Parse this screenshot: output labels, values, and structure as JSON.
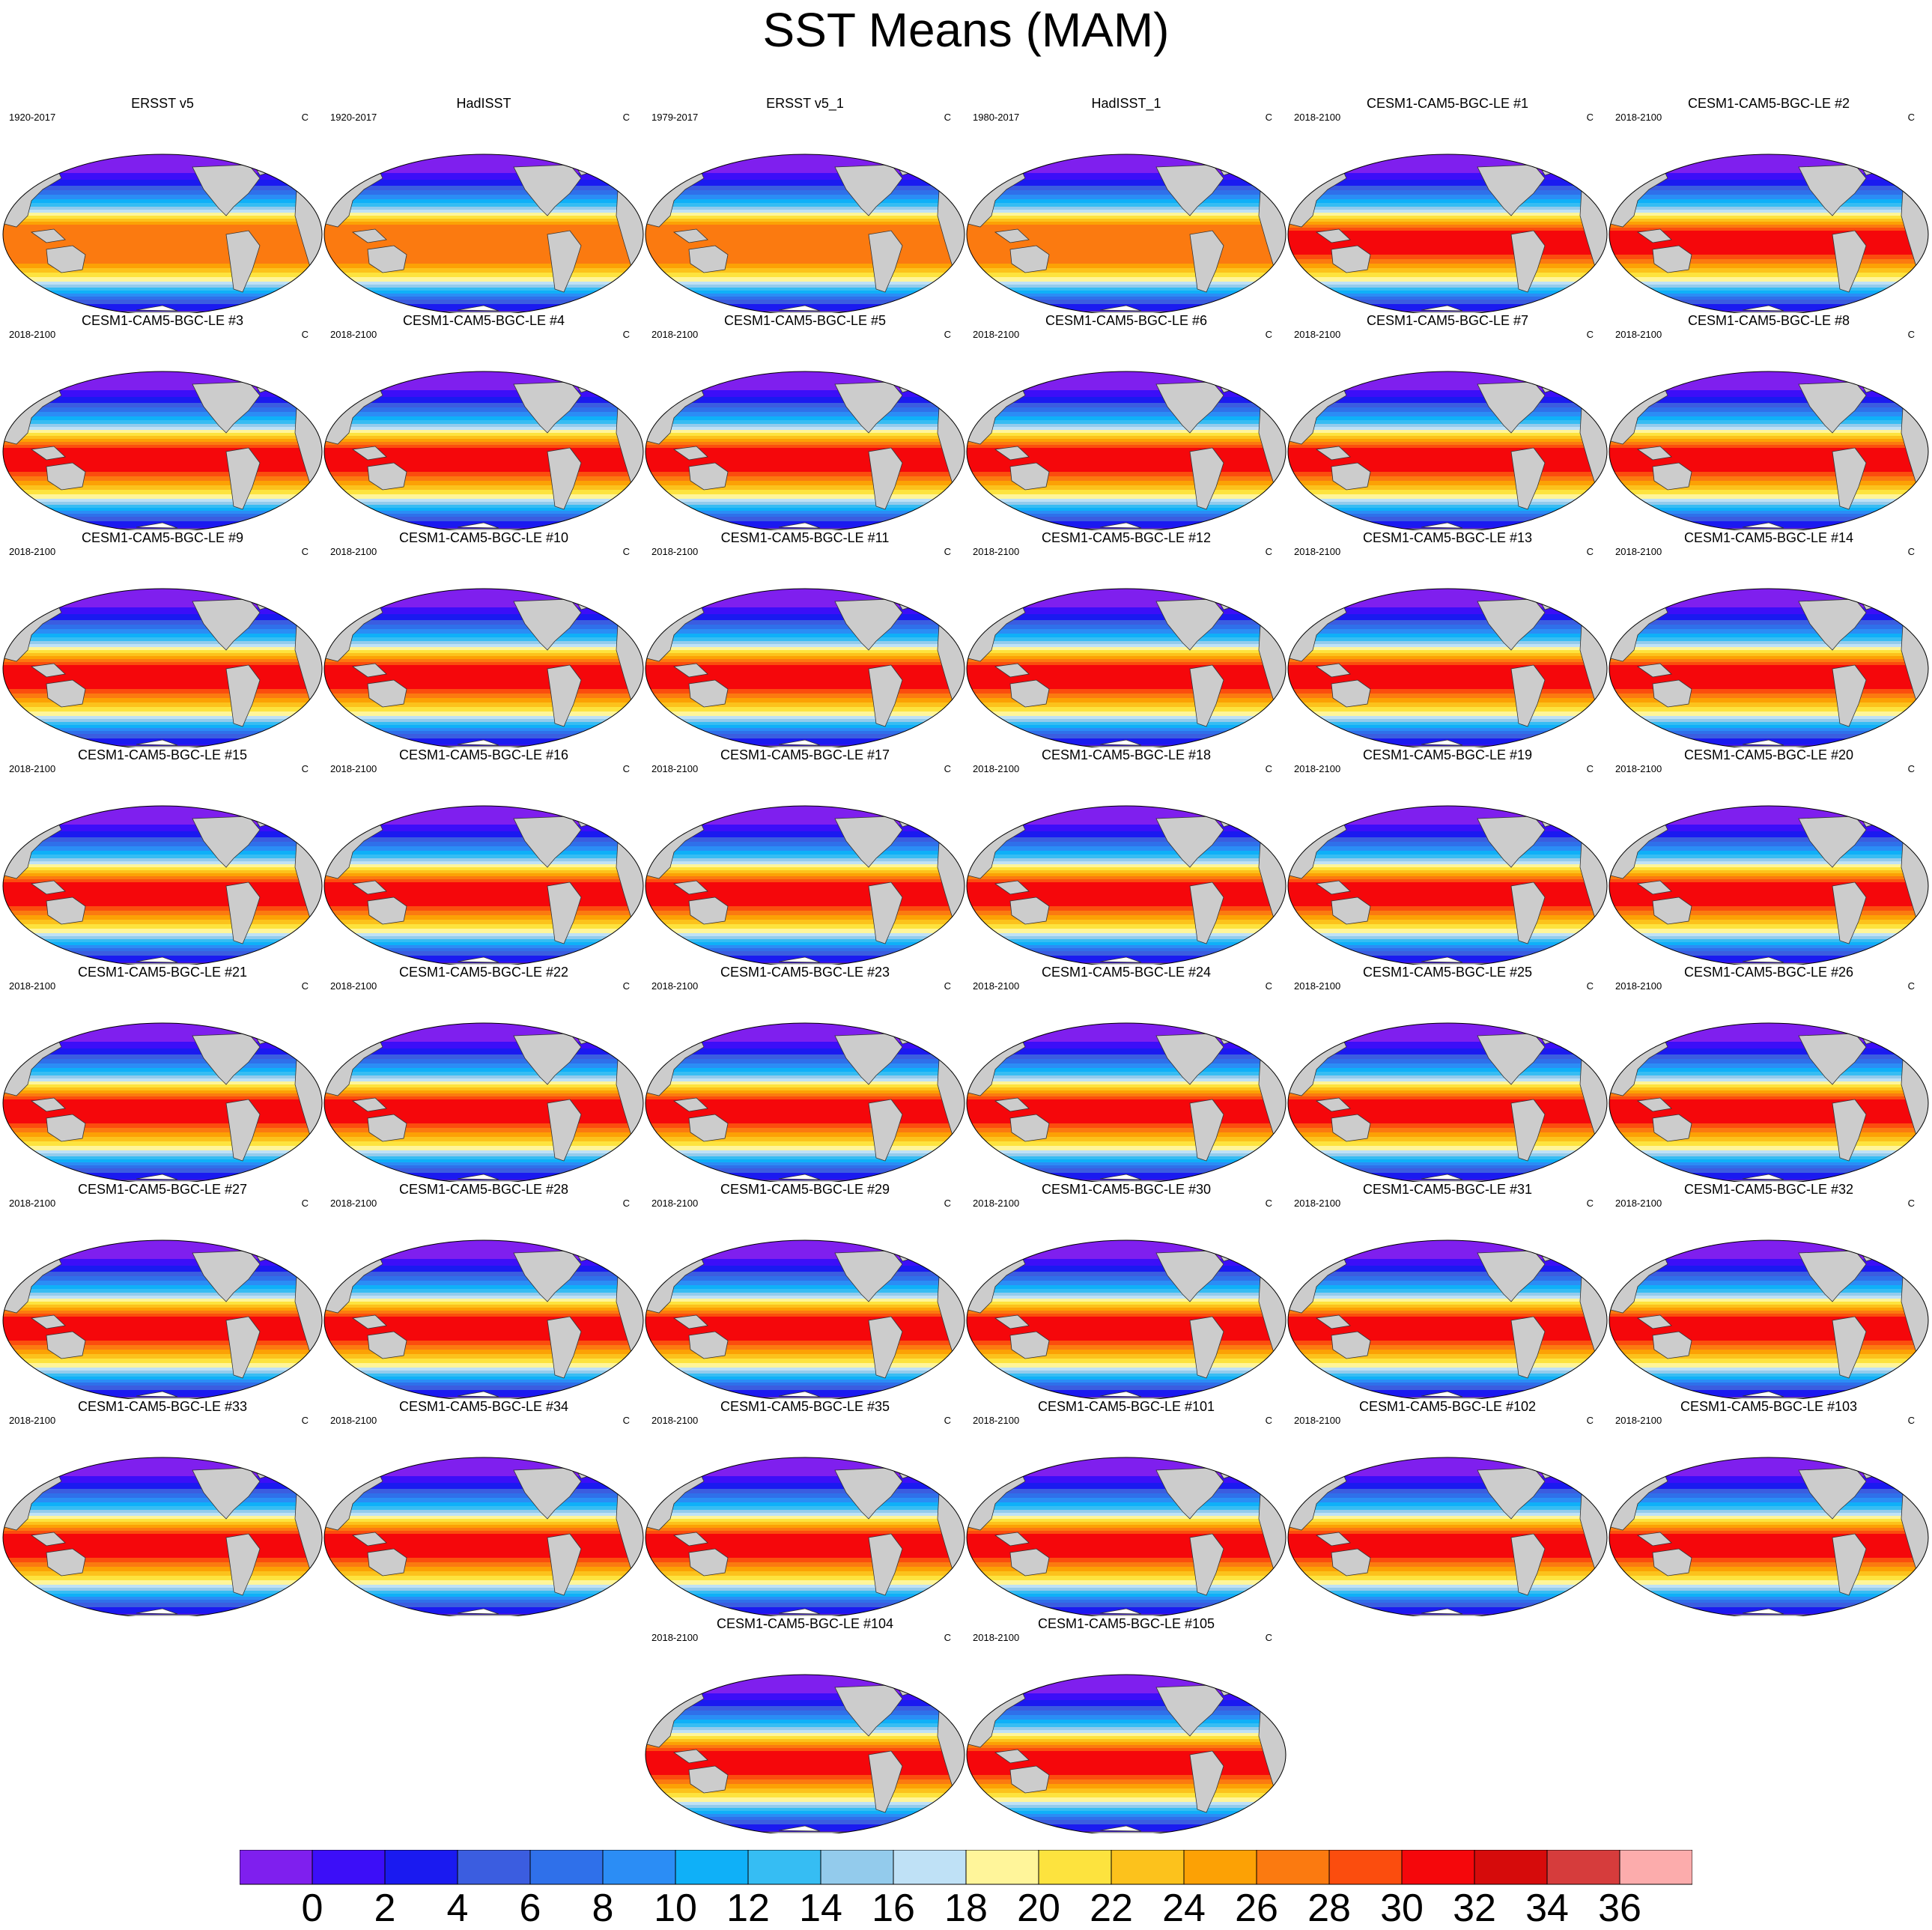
{
  "title": "SST Means (MAM)",
  "units": "C",
  "colors": {
    "land": "#cccccc",
    "ice": "#ffffff",
    "outline": "#333333"
  },
  "colorbar": {
    "colors": [
      "#7f1fee",
      "#3c0ef8",
      "#1a1af0",
      "#3b5de0",
      "#2f70ea",
      "#2b8df5",
      "#0fb0f8",
      "#36bdf3",
      "#93cbec",
      "#bfe1f6",
      "#fff59a",
      "#fde33e",
      "#fcc21c",
      "#fca105",
      "#fb7a10",
      "#fb4d0e",
      "#f5070b",
      "#d60b0b",
      "#d63c3c",
      "#fcacac"
    ],
    "labels": [
      "0",
      "2",
      "4",
      "6",
      "8",
      "10",
      "12",
      "14",
      "16",
      "18",
      "20",
      "22",
      "24",
      "26",
      "28",
      "30",
      "32",
      "34",
      "36"
    ]
  },
  "chart_data": {
    "type": "heatmap",
    "description_variable": "Sea surface temperature MAM climatology maps",
    "levels": [
      0,
      2,
      4,
      6,
      8,
      10,
      12,
      14,
      16,
      18,
      20,
      22,
      24,
      26,
      28,
      30,
      32,
      34,
      36
    ],
    "panels": [
      {
        "title": "ERSST v5",
        "period": "1920-2017",
        "units": "C"
      },
      {
        "title": "HadISST",
        "period": "1920-2017",
        "units": "C"
      },
      {
        "title": "ERSST v5_1",
        "period": "1979-2017",
        "units": "C"
      },
      {
        "title": "HadISST_1",
        "period": "1980-2017",
        "units": "C"
      },
      {
        "title": "CESM1-CAM5-BGC-LE #1",
        "period": "2018-2100",
        "units": "C"
      },
      {
        "title": "CESM1-CAM5-BGC-LE #2",
        "period": "2018-2100",
        "units": "C"
      },
      {
        "title": "CESM1-CAM5-BGC-LE #3",
        "period": "2018-2100",
        "units": "C"
      },
      {
        "title": "CESM1-CAM5-BGC-LE #4",
        "period": "2018-2100",
        "units": "C"
      },
      {
        "title": "CESM1-CAM5-BGC-LE #5",
        "period": "2018-2100",
        "units": "C"
      },
      {
        "title": "CESM1-CAM5-BGC-LE #6",
        "period": "2018-2100",
        "units": "C"
      },
      {
        "title": "CESM1-CAM5-BGC-LE #7",
        "period": "2018-2100",
        "units": "C"
      },
      {
        "title": "CESM1-CAM5-BGC-LE #8",
        "period": "2018-2100",
        "units": "C"
      },
      {
        "title": "CESM1-CAM5-BGC-LE #9",
        "period": "2018-2100",
        "units": "C"
      },
      {
        "title": "CESM1-CAM5-BGC-LE #10",
        "period": "2018-2100",
        "units": "C"
      },
      {
        "title": "CESM1-CAM5-BGC-LE #11",
        "period": "2018-2100",
        "units": "C"
      },
      {
        "title": "CESM1-CAM5-BGC-LE #12",
        "period": "2018-2100",
        "units": "C"
      },
      {
        "title": "CESM1-CAM5-BGC-LE #13",
        "period": "2018-2100",
        "units": "C"
      },
      {
        "title": "CESM1-CAM5-BGC-LE #14",
        "period": "2018-2100",
        "units": "C"
      },
      {
        "title": "CESM1-CAM5-BGC-LE #15",
        "period": "2018-2100",
        "units": "C"
      },
      {
        "title": "CESM1-CAM5-BGC-LE #16",
        "period": "2018-2100",
        "units": "C"
      },
      {
        "title": "CESM1-CAM5-BGC-LE #17",
        "period": "2018-2100",
        "units": "C"
      },
      {
        "title": "CESM1-CAM5-BGC-LE #18",
        "period": "2018-2100",
        "units": "C"
      },
      {
        "title": "CESM1-CAM5-BGC-LE #19",
        "period": "2018-2100",
        "units": "C"
      },
      {
        "title": "CESM1-CAM5-BGC-LE #20",
        "period": "2018-2100",
        "units": "C"
      },
      {
        "title": "CESM1-CAM5-BGC-LE #21",
        "period": "2018-2100",
        "units": "C"
      },
      {
        "title": "CESM1-CAM5-BGC-LE #22",
        "period": "2018-2100",
        "units": "C"
      },
      {
        "title": "CESM1-CAM5-BGC-LE #23",
        "period": "2018-2100",
        "units": "C"
      },
      {
        "title": "CESM1-CAM5-BGC-LE #24",
        "period": "2018-2100",
        "units": "C"
      },
      {
        "title": "CESM1-CAM5-BGC-LE #25",
        "period": "2018-2100",
        "units": "C"
      },
      {
        "title": "CESM1-CAM5-BGC-LE #26",
        "period": "2018-2100",
        "units": "C"
      },
      {
        "title": "CESM1-CAM5-BGC-LE #27",
        "period": "2018-2100",
        "units": "C"
      },
      {
        "title": "CESM1-CAM5-BGC-LE #28",
        "period": "2018-2100",
        "units": "C"
      },
      {
        "title": "CESM1-CAM5-BGC-LE #29",
        "period": "2018-2100",
        "units": "C"
      },
      {
        "title": "CESM1-CAM5-BGC-LE #30",
        "period": "2018-2100",
        "units": "C"
      },
      {
        "title": "CESM1-CAM5-BGC-LE #31",
        "period": "2018-2100",
        "units": "C"
      },
      {
        "title": "CESM1-CAM5-BGC-LE #32",
        "period": "2018-2100",
        "units": "C"
      },
      {
        "title": "CESM1-CAM5-BGC-LE #33",
        "period": "2018-2100",
        "units": "C"
      },
      {
        "title": "CESM1-CAM5-BGC-LE #34",
        "period": "2018-2100",
        "units": "C"
      },
      {
        "title": "CESM1-CAM5-BGC-LE #35",
        "period": "2018-2100",
        "units": "C"
      },
      {
        "title": "CESM1-CAM5-BGC-LE #101",
        "period": "2018-2100",
        "units": "C"
      },
      {
        "title": "CESM1-CAM5-BGC-LE #102",
        "period": "2018-2100",
        "units": "C"
      },
      {
        "title": "CESM1-CAM5-BGC-LE #103",
        "period": "2018-2100",
        "units": "C"
      },
      {
        "title": "CESM1-CAM5-BGC-LE #104",
        "period": "2018-2100",
        "units": "C"
      },
      {
        "title": "CESM1-CAM5-BGC-LE #105",
        "period": "2018-2100",
        "units": "C"
      }
    ]
  }
}
